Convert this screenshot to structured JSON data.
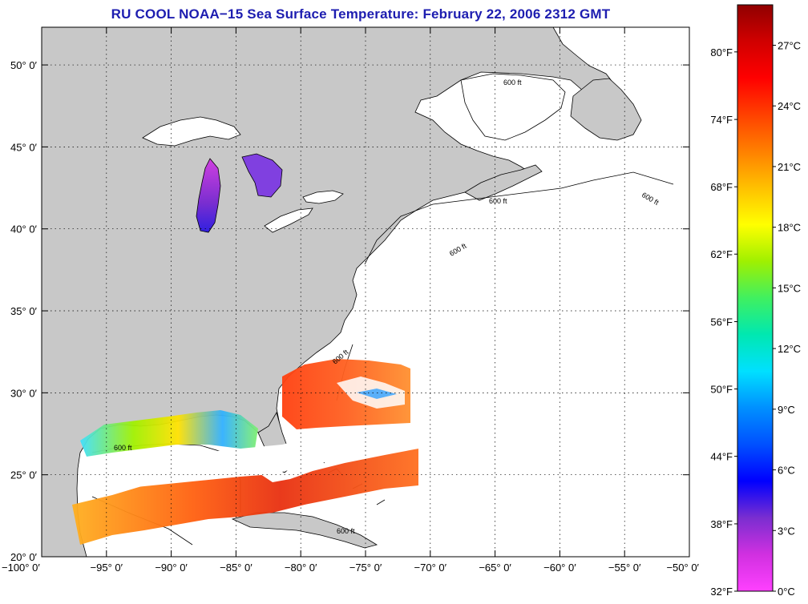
{
  "title": "RU COOL  NOAA−15  Sea Surface Temperature:  February 22, 2006 2312 GMT",
  "map": {
    "lon_range": [
      -100,
      -50
    ],
    "lat_range": [
      20,
      52.3
    ],
    "land_color": "#c8c8c8",
    "water_color": "#ffffff",
    "grid": "dotted",
    "lon_ticks": [
      {
        "value": -100,
        "label": "−100° 0′"
      },
      {
        "value": -95,
        "label": "−95° 0′"
      },
      {
        "value": -90,
        "label": "−90° 0′"
      },
      {
        "value": -85,
        "label": "−85° 0′"
      },
      {
        "value": -80,
        "label": "−80° 0′"
      },
      {
        "value": -75,
        "label": "−75° 0′"
      },
      {
        "value": -70,
        "label": "−70° 0′"
      },
      {
        "value": -65,
        "label": "−65° 0′"
      },
      {
        "value": -60,
        "label": "−60° 0′"
      },
      {
        "value": -55,
        "label": "−55° 0′"
      },
      {
        "value": -50,
        "label": "−50° 0′"
      }
    ],
    "lat_ticks": [
      {
        "value": 20,
        "label": "20° 0′"
      },
      {
        "value": 25,
        "label": "25° 0′"
      },
      {
        "value": 30,
        "label": "30° 0′"
      },
      {
        "value": 35,
        "label": "35° 0′"
      },
      {
        "value": 40,
        "label": "40° 0′"
      },
      {
        "value": 45,
        "label": "45° 0′"
      },
      {
        "value": 50,
        "label": "50° 0′"
      }
    ],
    "bathymetry_label": "600 ft",
    "bathymetry_label_alt": "600 ft"
  },
  "colorbar": {
    "range_c": [
      0,
      29
    ],
    "colors": [
      "#ff40ff",
      "#d030e0",
      "#7a2ed0",
      "#0000ff",
      "#0050ff",
      "#0090ff",
      "#00e0ff",
      "#00e8b0",
      "#40f060",
      "#a0f000",
      "#ffff00",
      "#ffc000",
      "#ff8000",
      "#ff4000",
      "#ff0000",
      "#d00000",
      "#900000"
    ],
    "fahrenheit_labels": [
      {
        "value_c": 0,
        "label": "32°F"
      },
      {
        "value_c": 3.33,
        "label": "38°F"
      },
      {
        "value_c": 6.67,
        "label": "44°F"
      },
      {
        "value_c": 10,
        "label": "50°F"
      },
      {
        "value_c": 13.33,
        "label": "56°F"
      },
      {
        "value_c": 16.67,
        "label": "62°F"
      },
      {
        "value_c": 20,
        "label": "68°F"
      },
      {
        "value_c": 23.33,
        "label": "74°F"
      },
      {
        "value_c": 26.67,
        "label": "80°F"
      }
    ],
    "celsius_labels": [
      {
        "value_c": 0,
        "label": "0°C"
      },
      {
        "value_c": 3,
        "label": "3°C"
      },
      {
        "value_c": 6,
        "label": "6°C"
      },
      {
        "value_c": 9,
        "label": "9°C"
      },
      {
        "value_c": 12,
        "label": "12°C"
      },
      {
        "value_c": 15,
        "label": "15°C"
      },
      {
        "value_c": 18,
        "label": "18°C"
      },
      {
        "value_c": 21,
        "label": "21°C"
      },
      {
        "value_c": 24,
        "label": "24°C"
      },
      {
        "value_c": 27,
        "label": "27°C"
      }
    ]
  }
}
